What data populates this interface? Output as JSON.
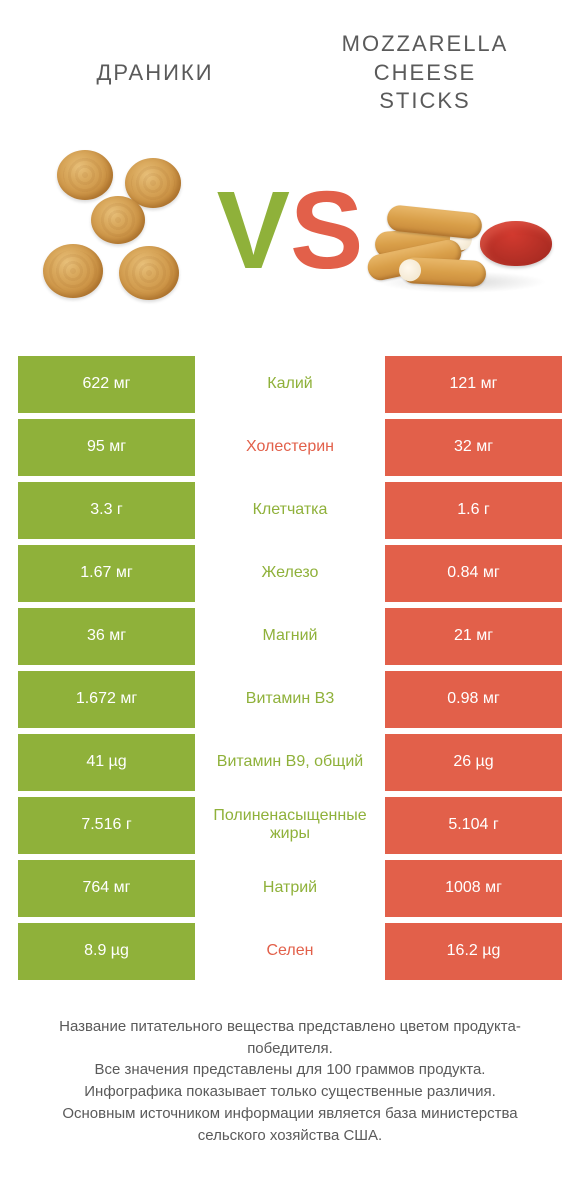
{
  "colors": {
    "green": "#8fb13a",
    "red": "#e2604a",
    "text": "#5a5a5a"
  },
  "header": {
    "left": "Драники",
    "right": "Mozzarella\ncheese\nsticks"
  },
  "vs": {
    "v_color": "#8fb13a",
    "s_color": "#e2604a"
  },
  "rows": [
    {
      "nutrient": "Калий",
      "left": "622 мг",
      "right": "121 мг",
      "winner": "left"
    },
    {
      "nutrient": "Холестерин",
      "left": "95 мг",
      "right": "32 мг",
      "winner": "right"
    },
    {
      "nutrient": "Клетчатка",
      "left": "3.3 г",
      "right": "1.6 г",
      "winner": "left"
    },
    {
      "nutrient": "Железо",
      "left": "1.67 мг",
      "right": "0.84 мг",
      "winner": "left"
    },
    {
      "nutrient": "Магний",
      "left": "36 мг",
      "right": "21 мг",
      "winner": "left"
    },
    {
      "nutrient": "Витамин B3",
      "left": "1.672 мг",
      "right": "0.98 мг",
      "winner": "left"
    },
    {
      "nutrient": "Витамин B9, общий",
      "left": "41 µg",
      "right": "26 µg",
      "winner": "left"
    },
    {
      "nutrient": "Полиненасыщенные жиры",
      "left": "7.516 г",
      "right": "5.104 г",
      "winner": "left"
    },
    {
      "nutrient": "Натрий",
      "left": "764 мг",
      "right": "1008 мг",
      "winner": "left"
    },
    {
      "nutrient": "Селен",
      "left": "8.9 µg",
      "right": "16.2 µg",
      "winner": "right"
    }
  ],
  "footer": {
    "line1": "Название питательного вещества представлено цветом продукта-победителя.",
    "line2": "Все значения представлены для 100 граммов продукта.",
    "line3": "Инфографика показывает только существенные различия.",
    "line4": "Основным источником информации является база министерства сельского хозяйства США."
  }
}
